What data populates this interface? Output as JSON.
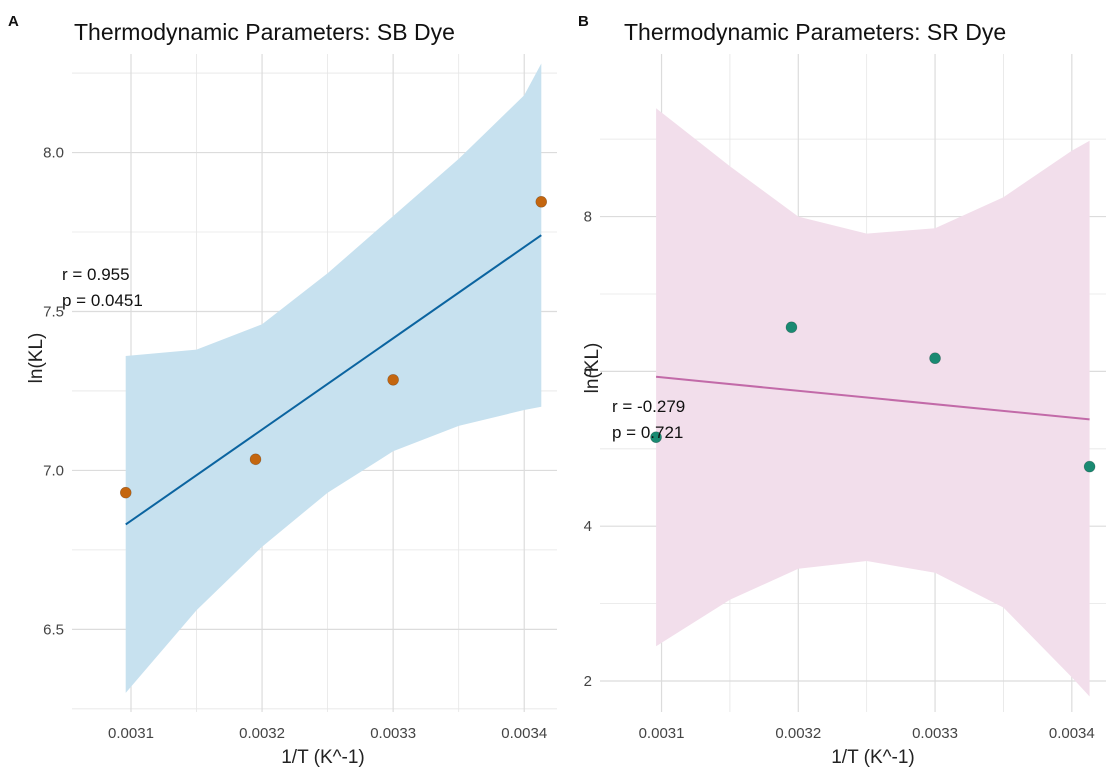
{
  "chart_data": [
    {
      "panel": "A",
      "type": "scatter",
      "title": "Thermodynamic Parameters: SB Dye",
      "xlabel": "1/T (K^-1)",
      "ylabel": "ln(KL)",
      "xlim": [
        0.003055,
        0.003425
      ],
      "ylim": [
        6.24,
        8.31
      ],
      "x_ticks": [
        0.0031,
        0.0032,
        0.0033,
        0.0034
      ],
      "x_tick_labels": [
        "0.0031",
        "0.0032",
        "0.0033",
        "0.0034"
      ],
      "y_ticks": [
        6.5,
        7.0,
        7.5,
        8.0
      ],
      "y_tick_labels": [
        "6.5",
        "7.0",
        "7.5",
        "8.0"
      ],
      "points": [
        {
          "x": 0.003096,
          "y": 6.93
        },
        {
          "x": 0.003195,
          "y": 7.035
        },
        {
          "x": 0.0033,
          "y": 7.285
        },
        {
          "x": 0.003413,
          "y": 7.845
        }
      ],
      "fit": {
        "x": [
          0.003096,
          0.003413
        ],
        "y": [
          6.83,
          7.74
        ]
      },
      "ci_band": {
        "x": [
          0.003096,
          0.00315,
          0.0032,
          0.00325,
          0.0033,
          0.00335,
          0.0034,
          0.003413
        ],
        "lower": [
          6.3,
          6.56,
          6.76,
          6.93,
          7.06,
          7.14,
          7.19,
          7.2
        ],
        "upper": [
          7.36,
          7.38,
          7.46,
          7.62,
          7.8,
          7.98,
          8.18,
          8.28
        ]
      },
      "stats": {
        "r_label": "r = 0.955",
        "p_label": "p = 0.0451"
      },
      "colors": {
        "point": "#c4660f",
        "line": "#0b64a0",
        "band": "#c7e1ef",
        "grid": "#e6e6e6"
      }
    },
    {
      "panel": "B",
      "type": "scatter",
      "title": "Thermodynamic Parameters:  SR Dye",
      "xlabel": "1/T (K^-1)",
      "ylabel": "ln(KL)",
      "xlim": [
        0.003055,
        0.003425
      ],
      "ylim": [
        1.6,
        10.1
      ],
      "x_ticks": [
        0.0031,
        0.0032,
        0.0033,
        0.0034
      ],
      "x_tick_labels": [
        "0.0031",
        "0.0032",
        "0.0033",
        "0.0034"
      ],
      "y_ticks": [
        2,
        4,
        6,
        8
      ],
      "y_tick_labels": [
        "2",
        "4",
        "6",
        "8"
      ],
      "points": [
        {
          "x": 0.003096,
          "y": 5.15
        },
        {
          "x": 0.003195,
          "y": 6.57
        },
        {
          "x": 0.0033,
          "y": 6.17
        },
        {
          "x": 0.003413,
          "y": 4.77
        }
      ],
      "fit": {
        "x": [
          0.003096,
          0.003413
        ],
        "y": [
          5.93,
          5.38
        ]
      },
      "ci_band": {
        "x": [
          0.003096,
          0.00315,
          0.0032,
          0.00325,
          0.0033,
          0.00335,
          0.0034,
          0.003413
        ],
        "lower": [
          2.45,
          3.05,
          3.45,
          3.55,
          3.4,
          2.95,
          2.05,
          1.8
        ],
        "upper": [
          9.4,
          8.65,
          8.0,
          7.78,
          7.85,
          8.25,
          8.85,
          8.98
        ]
      },
      "stats": {
        "r_label": "r = -0.279",
        "p_label": "p = 0.721"
      },
      "colors": {
        "point": "#1a8a72",
        "line": "#c26aa8",
        "band": "#f2deeb",
        "grid": "#e6e6e6"
      }
    }
  ]
}
